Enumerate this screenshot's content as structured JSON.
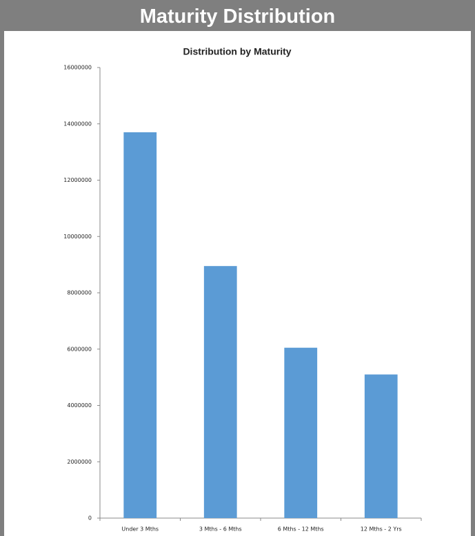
{
  "header": {
    "title": "Maturity Distribution"
  },
  "chart_data": {
    "type": "bar",
    "title": "Distribution by Maturity",
    "categories": [
      "Under 3 Mths",
      "3 Mths - 6 Mths",
      "6 Mths - 12 Mths",
      "12 Mths - 2 Yrs"
    ],
    "values": [
      13700000,
      8950000,
      6050000,
      5100000
    ],
    "color": "#5b9bd5",
    "ylim": [
      0,
      16000000
    ],
    "yticks": [
      0,
      2000000,
      4000000,
      6000000,
      8000000,
      10000000,
      12000000,
      14000000,
      16000000
    ],
    "grid": false
  }
}
